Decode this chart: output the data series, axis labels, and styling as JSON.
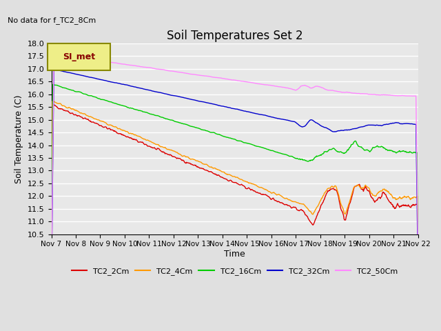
{
  "title": "Soil Temperatures Set 2",
  "top_left_note": "No data for f_TC2_8Cm",
  "ylabel": "Soil Temperature (C)",
  "xlabel": "Time",
  "ylim": [
    10.5,
    18.0
  ],
  "yticks": [
    10.5,
    11.0,
    11.5,
    12.0,
    12.5,
    13.0,
    13.5,
    14.0,
    14.5,
    15.0,
    15.5,
    16.0,
    16.5,
    17.0,
    17.5,
    18.0
  ],
  "background_color": "#e0e0e0",
  "plot_bg_color": "#e8e8e8",
  "grid_color": "#ffffff",
  "series": [
    {
      "label": "TC2_2Cm",
      "color": "#dd0000"
    },
    {
      "label": "TC2_4Cm",
      "color": "#ff9900"
    },
    {
      "label": "TC2_16Cm",
      "color": "#00cc00"
    },
    {
      "label": "TC2_32Cm",
      "color": "#0000cc"
    },
    {
      "label": "TC2_50Cm",
      "color": "#ff88ff"
    }
  ],
  "x_tick_labels": [
    "Nov 7",
    "Nov 8",
    "Nov 9",
    "Nov 10",
    "Nov 11",
    "Nov 12",
    "Nov 13",
    "Nov 14",
    "Nov 15",
    "Nov 16",
    "Nov 17",
    "Nov 18",
    "Nov 19",
    "Nov 20",
    "Nov 21",
    "Nov 22"
  ],
  "legend_label": "SI_met",
  "legend_box_facecolor": "#eeee88",
  "legend_box_edgecolor": "#888800",
  "legend_text_color": "#880000"
}
